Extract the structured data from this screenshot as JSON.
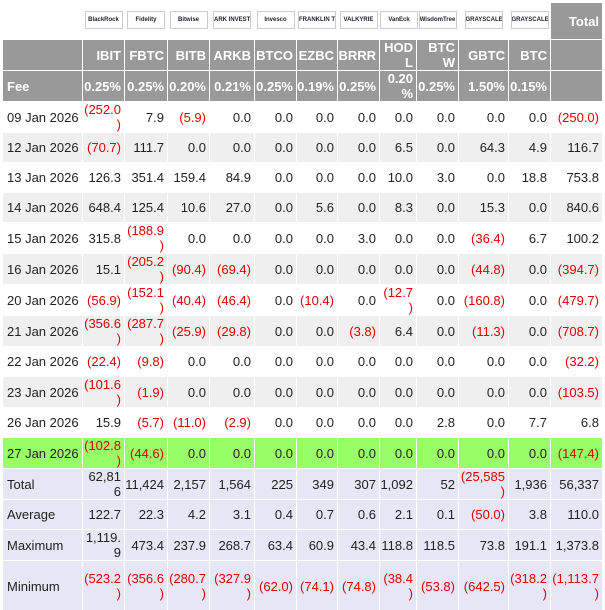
{
  "header": {
    "logos": [
      "BlackRock",
      "Fidelity",
      "Bitwise",
      "ARK INVEST",
      "Invesco",
      "FRANKLIN TEMPLETON",
      "VALKYRIE",
      "VanEck",
      "WisdomTree",
      "GRAYSCALE",
      "GRAYSCALE"
    ],
    "total": "Total",
    "tickers": [
      "IBIT",
      "FBTC",
      "BITB",
      "ARKB",
      "BTCO",
      "EZBC",
      "BRRR",
      "HODL",
      "BTCW",
      "GBTC",
      "BTC"
    ],
    "fee_label": "Fee",
    "fees": [
      "0.25%",
      "0.25%",
      "0.20%",
      "0.21%",
      "0.25%",
      "0.19%",
      "0.25%",
      "0.20%",
      "0.25%",
      "1.50%",
      "0.15%"
    ]
  },
  "rows": [
    {
      "label": "09 Jan 2026",
      "values": [
        "(252.0)",
        "7.9",
        "(5.9)",
        "0.0",
        "0.0",
        "0.0",
        "0.0",
        "0.0",
        "0.0",
        "0.0",
        "0.0",
        "(250.0)"
      ]
    },
    {
      "label": "12 Jan 2026",
      "values": [
        "(70.7)",
        "111.7",
        "0.0",
        "0.0",
        "0.0",
        "0.0",
        "0.0",
        "6.5",
        "0.0",
        "64.3",
        "4.9",
        "116.7"
      ]
    },
    {
      "label": "13 Jan 2026",
      "values": [
        "126.3",
        "351.4",
        "159.4",
        "84.9",
        "0.0",
        "0.0",
        "0.0",
        "10.0",
        "3.0",
        "0.0",
        "18.8",
        "753.8"
      ]
    },
    {
      "label": "14 Jan 2026",
      "values": [
        "648.4",
        "125.4",
        "10.6",
        "27.0",
        "0.0",
        "5.6",
        "0.0",
        "8.3",
        "0.0",
        "15.3",
        "0.0",
        "840.6"
      ]
    },
    {
      "label": "15 Jan 2026",
      "values": [
        "315.8",
        "(188.9)",
        "0.0",
        "0.0",
        "0.0",
        "0.0",
        "3.0",
        "0.0",
        "0.0",
        "(36.4)",
        "6.7",
        "100.2"
      ]
    },
    {
      "label": "16 Jan 2026",
      "values": [
        "15.1",
        "(205.2)",
        "(90.4)",
        "(69.4)",
        "0.0",
        "0.0",
        "0.0",
        "0.0",
        "0.0",
        "(44.8)",
        "0.0",
        "(394.7)"
      ]
    },
    {
      "label": "20 Jan 2026",
      "values": [
        "(56.9)",
        "(152.1)",
        "(40.4)",
        "(46.4)",
        "0.0",
        "(10.4)",
        "0.0",
        "(12.7)",
        "0.0",
        "(160.8)",
        "0.0",
        "(479.7)"
      ]
    },
    {
      "label": "21 Jan 2026",
      "values": [
        "(356.6)",
        "(287.7)",
        "(25.9)",
        "(29.8)",
        "0.0",
        "0.0",
        "(3.8)",
        "6.4",
        "0.0",
        "(11.3)",
        "0.0",
        "(708.7)"
      ]
    },
    {
      "label": "22 Jan 2026",
      "values": [
        "(22.4)",
        "(9.8)",
        "0.0",
        "0.0",
        "0.0",
        "0.0",
        "0.0",
        "0.0",
        "0.0",
        "0.0",
        "0.0",
        "(32.2)"
      ]
    },
    {
      "label": "23 Jan 2026",
      "values": [
        "(101.6)",
        "(1.9)",
        "0.0",
        "0.0",
        "0.0",
        "0.0",
        "0.0",
        "0.0",
        "0.0",
        "0.0",
        "0.0",
        "(103.5)"
      ]
    },
    {
      "label": "26 Jan 2026",
      "values": [
        "15.9",
        "(5.7)",
        "(11.0)",
        "(2.9)",
        "0.0",
        "0.0",
        "0.0",
        "0.0",
        "2.8",
        "0.0",
        "7.7",
        "6.8"
      ]
    },
    {
      "label": "27 Jan 2026",
      "highlight": true,
      "values": [
        "(102.8)",
        "(44.6)",
        "0.0",
        "0.0",
        "0.0",
        "0.0",
        "0.0",
        "0.0",
        "0.0",
        "0.0",
        "0.0",
        "(147.4)"
      ]
    }
  ],
  "summary": [
    {
      "label": "Total",
      "values": [
        "62,816",
        "11,424",
        "2,157",
        "1,564",
        "225",
        "349",
        "307",
        "1,092",
        "52",
        "(25,585)",
        "1,936",
        "56,337"
      ]
    },
    {
      "label": "Average",
      "values": [
        "122.7",
        "22.3",
        "4.2",
        "3.1",
        "0.4",
        "0.7",
        "0.6",
        "2.1",
        "0.1",
        "(50.0)",
        "3.8",
        "110.0"
      ]
    },
    {
      "label": "Maximum",
      "values": [
        "1,119.9",
        "473.4",
        "237.9",
        "268.7",
        "63.4",
        "60.9",
        "43.4",
        "118.8",
        "118.5",
        "73.8",
        "191.1",
        "1,373.8"
      ]
    },
    {
      "label": "Minimum",
      "values": [
        "(523.2)",
        "(356.6)",
        "(280.7)",
        "(327.9)",
        "(62.0)",
        "(74.1)",
        "(74.8)",
        "(38.4)",
        "(53.8)",
        "(642.5)",
        "(318.2)",
        "(1,113.7)"
      ]
    }
  ]
}
